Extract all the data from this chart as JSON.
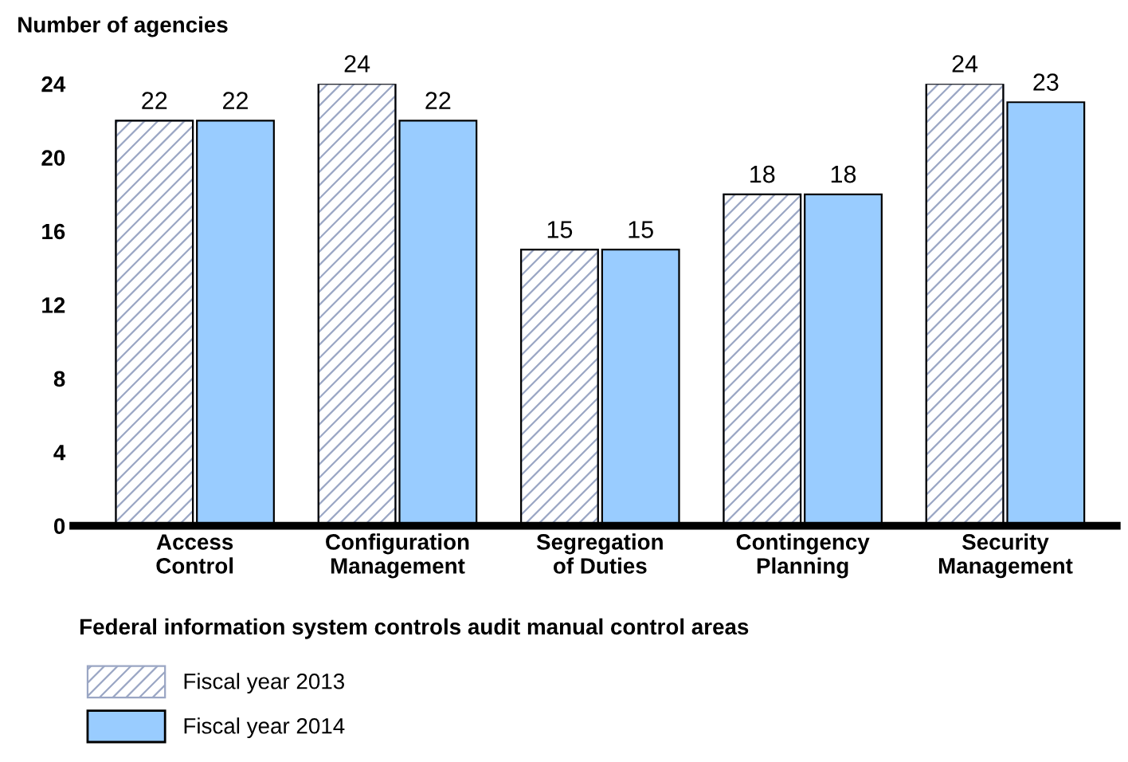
{
  "chart_data": {
    "type": "bar",
    "ylabel": "Number of agencies",
    "xlabel": "Federal information system controls audit manual control areas",
    "categories": [
      "Access\nControl",
      "Configuration\nManagement",
      "Segregation\nof Duties",
      "Contingency\nPlanning",
      "Security\nManagement"
    ],
    "series": [
      {
        "name": "Fiscal year 2013",
        "color": "#9aa6c4",
        "values": [
          22,
          24,
          15,
          18,
          24
        ]
      },
      {
        "name": "Fiscal year 2014",
        "color": "#99ccff",
        "values": [
          22,
          22,
          15,
          18,
          23
        ]
      }
    ],
    "ylim": [
      0,
      24
    ],
    "yticks": [
      0,
      4,
      8,
      12,
      16,
      20,
      24
    ],
    "grid": false,
    "legend": "bottom left",
    "data_labels": true
  }
}
